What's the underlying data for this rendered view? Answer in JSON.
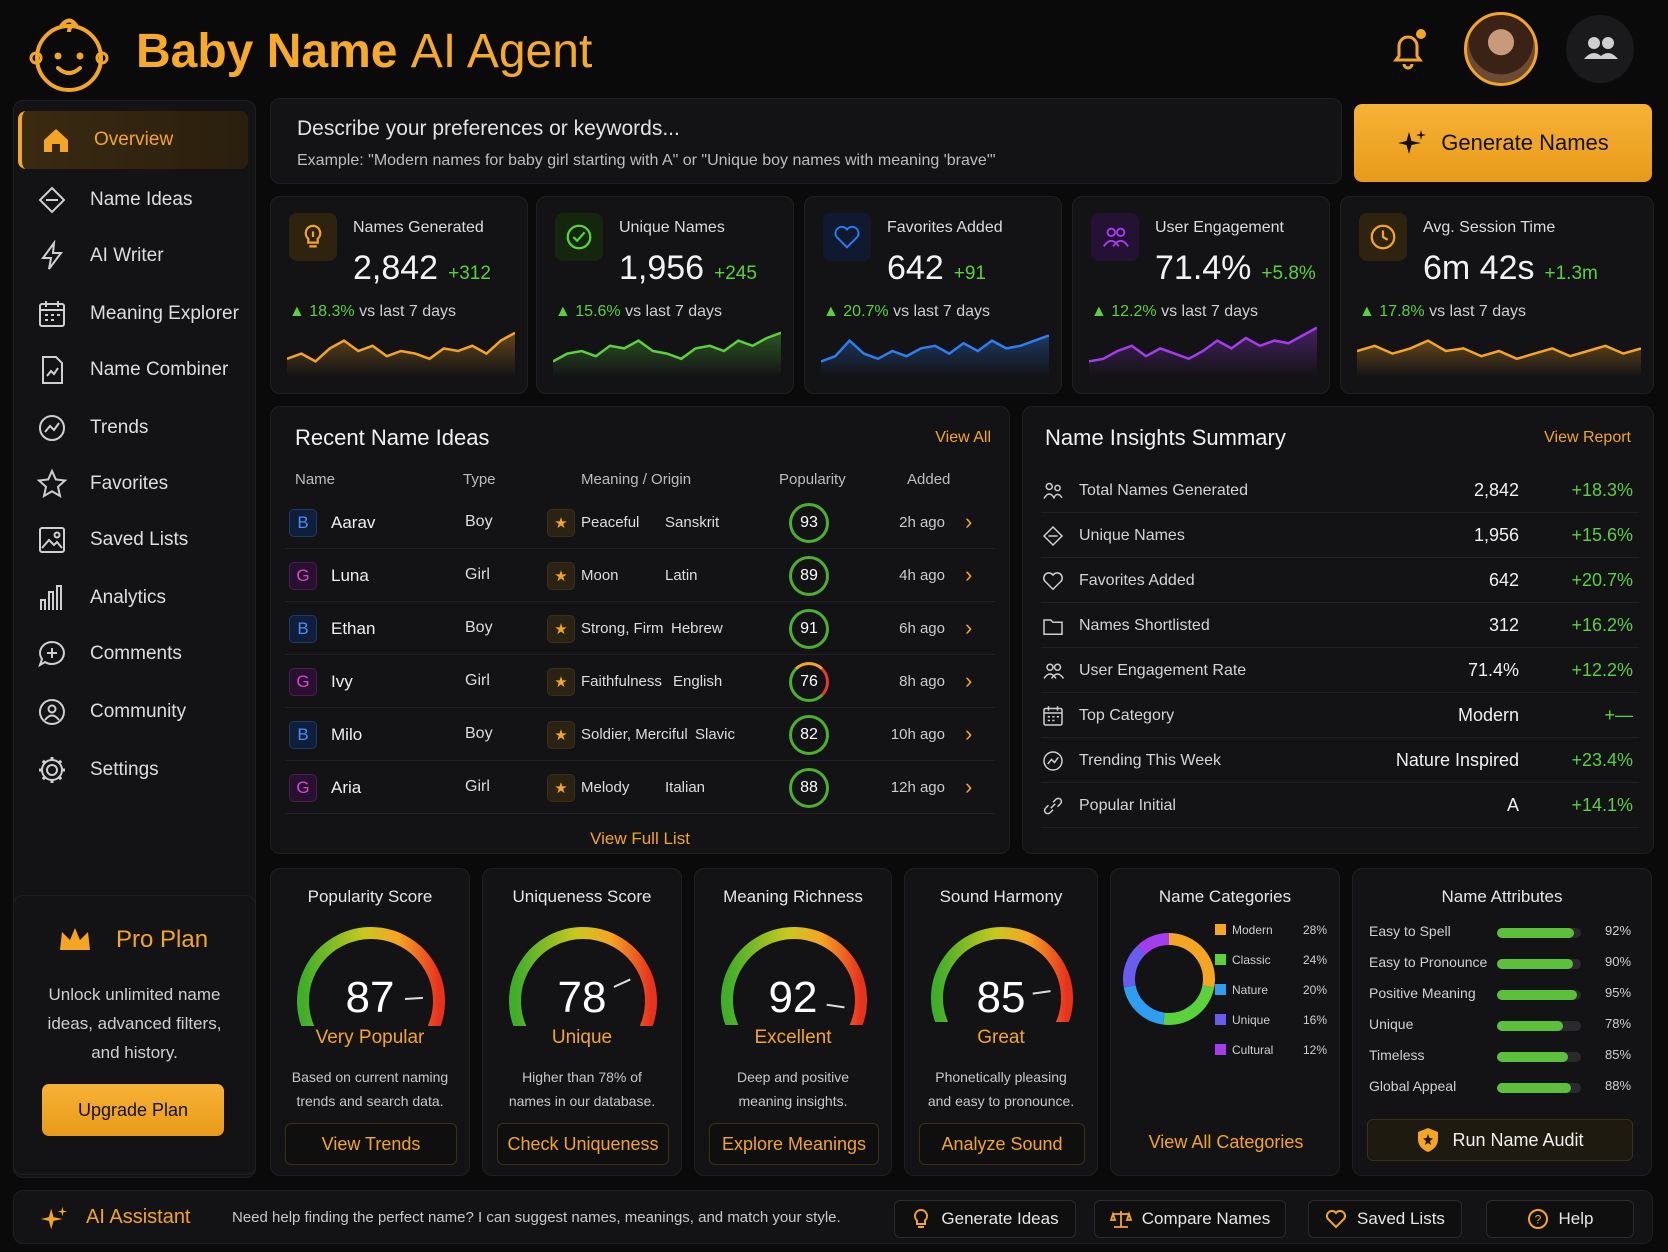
{
  "header": {
    "title_bold": "Baby Name",
    "title_thin": "AI Agent"
  },
  "sidebar": {
    "items": [
      {
        "label": "Overview",
        "icon": "home-icon"
      },
      {
        "label": "Name Ideas",
        "icon": "diamond-icon"
      },
      {
        "label": "AI Writer",
        "icon": "bolt-icon"
      },
      {
        "label": "Meaning Explorer",
        "icon": "calendar-icon"
      },
      {
        "label": "Name Combiner",
        "icon": "document-icon"
      },
      {
        "label": "Trends",
        "icon": "trend-icon"
      },
      {
        "label": "Favorites",
        "icon": "star-icon"
      },
      {
        "label": "Saved Lists",
        "icon": "image-icon"
      },
      {
        "label": "Analytics",
        "icon": "bar-chart-icon"
      },
      {
        "label": "Comments",
        "icon": "comment-icon"
      },
      {
        "label": "Community",
        "icon": "community-icon"
      },
      {
        "label": "Settings",
        "icon": "gear-icon"
      }
    ]
  },
  "pro": {
    "title": "Pro Plan",
    "line1": "Unlock unlimited name",
    "line2": "ideas, advanced filters,",
    "line3": "and history.",
    "button": "Upgrade Plan"
  },
  "search": {
    "placeholder": "Describe your preferences or keywords...",
    "example": "Example: \"Modern names for baby girl starting with A\" or \"Unique boy names with meaning 'brave'\"",
    "button": "Generate Names"
  },
  "stats": [
    {
      "label": "Names Generated",
      "value": "2,842",
      "delta": "+312",
      "trend": "18.3%",
      "trend_suffix": " vs last 7 days",
      "color": "#f5a524"
    },
    {
      "label": "Unique Names",
      "value": "1,956",
      "delta": "+245",
      "trend": "15.6%",
      "trend_suffix": " vs last 7 days",
      "color": "#5bd13c"
    },
    {
      "label": "Favorites Added",
      "value": "642",
      "delta": "+91",
      "trend": "20.7%",
      "trend_suffix": " vs last 7 days",
      "color": "#2f7df0"
    },
    {
      "label": "User Engagement",
      "value": "71.4%",
      "delta": "+5.8%",
      "trend": "12.2%",
      "trend_suffix": " vs last 7 days",
      "color": "#a43cf0"
    },
    {
      "label": "Avg. Session Time",
      "value": "6m 42s",
      "delta": "+1.3m",
      "trend": "17.8%",
      "trend_suffix": " vs last 7 days",
      "color": "#f5a524"
    }
  ],
  "recent": {
    "title": "Recent Name Ideas",
    "view_all": "View All",
    "view_full": "View Full List",
    "headers": {
      "name": "Name",
      "type": "Type",
      "meaning": "Meaning / Origin",
      "popularity": "Popularity",
      "added": "Added"
    },
    "rows": [
      {
        "letter": "B",
        "name": "Aarav",
        "type": "Boy",
        "meaning": "Peaceful",
        "origin": "Sanskrit",
        "popularity": "93",
        "added": "2h ago"
      },
      {
        "letter": "G",
        "name": "Luna",
        "type": "Girl",
        "meaning": "Moon",
        "origin": "Latin",
        "popularity": "89",
        "added": "4h ago"
      },
      {
        "letter": "B",
        "name": "Ethan",
        "type": "Boy",
        "meaning": "Strong, Firm",
        "origin": "Hebrew",
        "popularity": "91",
        "added": "6h ago"
      },
      {
        "letter": "G",
        "name": "Ivy",
        "type": "Girl",
        "meaning": "Faithfulness",
        "origin": "English",
        "popularity": "76",
        "added": "8h ago"
      },
      {
        "letter": "B",
        "name": "Milo",
        "type": "Boy",
        "meaning": "Soldier, Merciful",
        "origin": "Slavic",
        "popularity": "82",
        "added": "10h ago"
      },
      {
        "letter": "G",
        "name": "Aria",
        "type": "Girl",
        "meaning": "Melody",
        "origin": "Italian",
        "popularity": "88",
        "added": "12h ago"
      }
    ]
  },
  "insights": {
    "title": "Name Insights Summary",
    "view_report": "View Report",
    "rows": [
      {
        "label": "Total Names Generated",
        "value": "2,842",
        "delta": "+18.3%",
        "icon": "users-icon"
      },
      {
        "label": "Unique Names",
        "value": "1,956",
        "delta": "+15.6%",
        "icon": "diamond-icon"
      },
      {
        "label": "Favorites Added",
        "value": "642",
        "delta": "+20.7%",
        "icon": "heart-icon"
      },
      {
        "label": "Names Shortlisted",
        "value": "312",
        "delta": "+16.2%",
        "icon": "folder-icon"
      },
      {
        "label": "User Engagement Rate",
        "value": "71.4%",
        "delta": "+12.2%",
        "icon": "people-icon"
      },
      {
        "label": "Top Category",
        "value": "Modern",
        "delta": "+—",
        "icon": "calendar-icon"
      },
      {
        "label": "Trending This Week",
        "value": "Nature Inspired",
        "delta": "+23.4%",
        "icon": "trend-icon"
      },
      {
        "label": "Popular Initial",
        "value": "A",
        "delta": "+14.1%",
        "icon": "link-icon"
      }
    ]
  },
  "scores": [
    {
      "title": "Popularity Score",
      "value": "87",
      "level": 0.87,
      "label": "Very Popular",
      "desc1": "Based on current naming",
      "desc2": "trends and search data.",
      "button": "View Trends"
    },
    {
      "title": "Uniqueness Score",
      "value": "78",
      "level": 0.78,
      "label": "Unique",
      "desc1": "Higher than 78% of",
      "desc2": "names in our database.",
      "button": "Check Uniqueness"
    },
    {
      "title": "Meaning Richness",
      "value": "92",
      "level": 0.92,
      "label": "Excellent",
      "desc1": "Deep and positive",
      "desc2": "meaning insights.",
      "button": "Explore Meanings"
    },
    {
      "title": "Sound Harmony",
      "value": "85",
      "level": 0.85,
      "label": "Great",
      "desc1": "Phonetically pleasing",
      "desc2": "and easy to pronounce.",
      "button": "Analyze Sound"
    }
  ],
  "categories": {
    "title": "Name Categories",
    "button": "View All Categories",
    "items": [
      {
        "name": "Modern",
        "pct": "28%",
        "value": 28,
        "color": "#f5a524"
      },
      {
        "name": "Classic",
        "pct": "24%",
        "value": 24,
        "color": "#5bd13c"
      },
      {
        "name": "Nature",
        "pct": "20%",
        "value": 20,
        "color": "#2f9df0"
      },
      {
        "name": "Unique",
        "pct": "16%",
        "value": 16,
        "color": "#6a5cf0"
      },
      {
        "name": "Cultural",
        "pct": "12%",
        "value": 12,
        "color": "#a43cf0"
      }
    ]
  },
  "attributes": {
    "title": "Name Attributes",
    "button": "Run Name Audit",
    "items": [
      {
        "name": "Easy to Spell",
        "pct": "92%",
        "value": 0.92
      },
      {
        "name": "Easy to Pronounce",
        "pct": "90%",
        "value": 0.9
      },
      {
        "name": "Positive Meaning",
        "pct": "95%",
        "value": 0.95
      },
      {
        "name": "Unique",
        "pct": "78%",
        "value": 0.78
      },
      {
        "name": "Timeless",
        "pct": "85%",
        "value": 0.85
      },
      {
        "name": "Global Appeal",
        "pct": "88%",
        "value": 0.88
      }
    ]
  },
  "footer": {
    "label": "AI Assistant",
    "text": "Need help finding the perfect name? I can suggest names, meanings, and match your style.",
    "buttons": [
      "Generate Ideas",
      "Compare Names",
      "Saved Lists",
      "Help"
    ]
  }
}
